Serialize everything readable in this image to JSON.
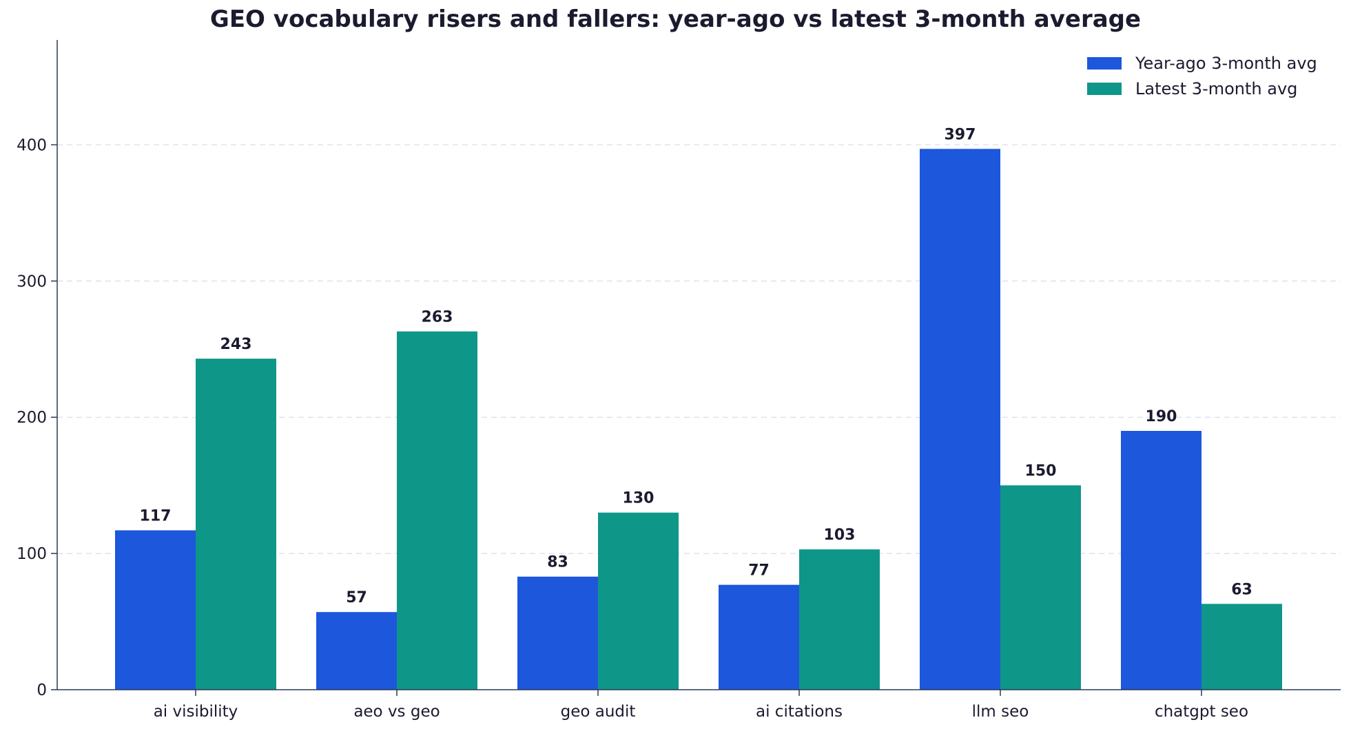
{
  "chart_data": {
    "type": "bar",
    "title": "GEO vocabulary risers and fallers: year-ago vs latest 3-month average",
    "xlabel": "",
    "ylabel": "",
    "categories": [
      "ai visibility",
      "aeo vs geo",
      "geo audit",
      "ai citations",
      "llm seo",
      "chatgpt seo"
    ],
    "series": [
      {
        "name": "Year-ago 3-month avg",
        "color": "#1c57dc",
        "values": [
          117,
          57,
          83,
          77,
          397,
          190
        ]
      },
      {
        "name": "Latest 3-month avg",
        "color": "#0e9688",
        "values": [
          243,
          263,
          130,
          103,
          150,
          63
        ]
      }
    ],
    "ylim": [
      0,
      477
    ],
    "yticks": [
      0,
      100,
      200,
      300,
      400
    ],
    "grid": "horizontal dashed",
    "legend_position": "top-right"
  }
}
